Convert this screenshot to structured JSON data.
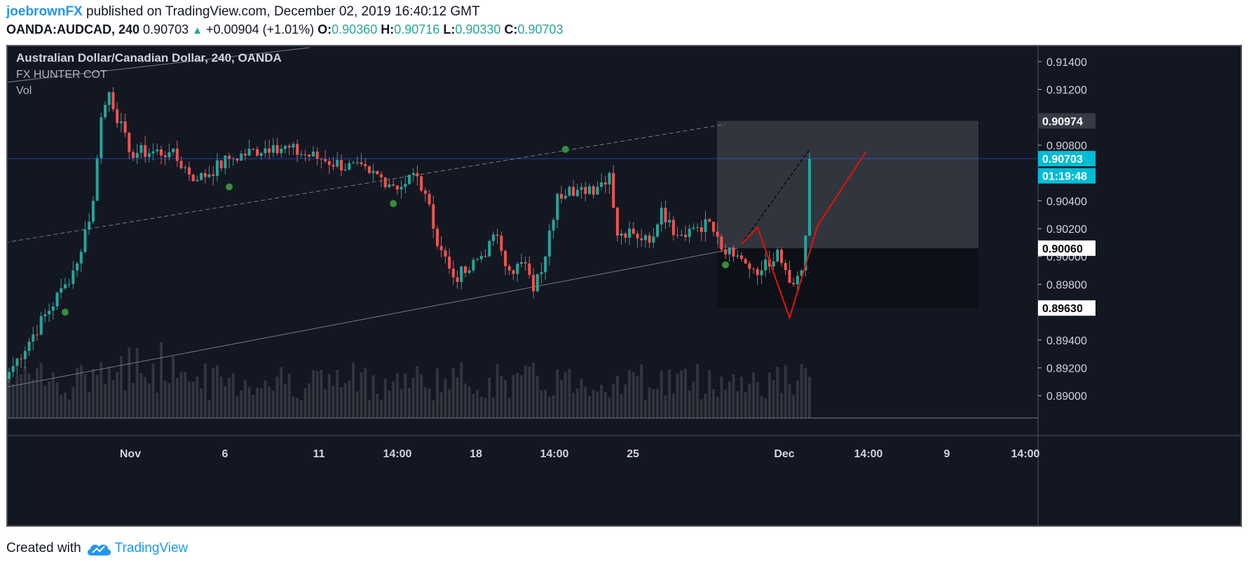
{
  "header": {
    "user": "joebrownFX",
    "published": " published on TradingView.com, December 02, 2019 16:40:12 GMT",
    "symbol": "OANDA:AUDCAD, 240",
    "last": "0.90703",
    "arrow": "▲",
    "change": "+0.00904 (+1.01%)",
    "o_label": "O:",
    "o_val": "0.90360",
    "h_label": "H:",
    "h_val": "0.90716",
    "l_label": "L:",
    "l_val": "0.90330",
    "c_label": "C:",
    "c_val": "0.90703"
  },
  "legend": {
    "title": "Australian Dollar/Canadian Dollar, 240, OANDA",
    "indicator": "FX HUNTER COT",
    "volume": "Vol"
  },
  "footer": {
    "created_with": "Created with",
    "brand": "TradingView"
  },
  "colors": {
    "background": "#131722",
    "up": "#26a69a",
    "down": "#ef5350",
    "zigzag": "#e3130c",
    "dot": "#388e3c",
    "price_line": "#2962ff",
    "price_badge": "#00bcd4"
  },
  "chart_data": {
    "type": "candlestick",
    "title": "Australian Dollar/Canadian Dollar, 240, OANDA",
    "timeframe": "240",
    "y_axis": {
      "ticks": [
        "0.91400",
        "0.91200",
        "0.90800",
        "0.90400",
        "0.90200",
        "0.90000",
        "0.89800",
        "0.89400",
        "0.89200",
        "0.89000"
      ],
      "tick_values": [
        0.914,
        0.912,
        0.908,
        0.904,
        0.902,
        0.9,
        0.898,
        0.894,
        0.892,
        0.89
      ],
      "range": [
        0.8884,
        0.9151
      ]
    },
    "x_axis": {
      "ticks": [
        "Nov",
        "6",
        "11",
        "14:00",
        "18",
        "14:00",
        "25",
        "Dec",
        "14:00",
        "9",
        "14:00"
      ]
    },
    "price_labels": [
      {
        "label": "0.90974",
        "value": 0.90974,
        "style": "dark"
      },
      {
        "label": "0.90703",
        "value": 0.90703,
        "style": "last"
      },
      {
        "label": "01:19:48",
        "value": 0.9064,
        "style": "countdown"
      },
      {
        "label": "0.90060",
        "value": 0.9006,
        "style": "white"
      },
      {
        "label": "0.89630",
        "value": 0.8963,
        "style": "white"
      }
    ],
    "last_price": 0.90703,
    "candle_count": 201,
    "key_levels": [
      {
        "bar": 0,
        "price": 0.8917
      },
      {
        "bar": 14,
        "price": 0.898
      },
      {
        "bar": 17,
        "price": 0.8995
      },
      {
        "bar": 21,
        "price": 0.904
      },
      {
        "bar": 23,
        "price": 0.91
      },
      {
        "bar": 25,
        "price": 0.9118
      },
      {
        "bar": 30,
        "price": 0.9075
      },
      {
        "bar": 40,
        "price": 0.9075
      },
      {
        "bar": 47,
        "price": 0.9055
      },
      {
        "bar": 55,
        "price": 0.907
      },
      {
        "bar": 66,
        "price": 0.908
      },
      {
        "bar": 78,
        "price": 0.907
      },
      {
        "bar": 90,
        "price": 0.906
      },
      {
        "bar": 98,
        "price": 0.905
      },
      {
        "bar": 101,
        "price": 0.906
      },
      {
        "bar": 104,
        "price": 0.9045
      },
      {
        "bar": 106,
        "price": 0.902
      },
      {
        "bar": 111,
        "price": 0.8985
      },
      {
        "bar": 115,
        "price": 0.899
      },
      {
        "bar": 122,
        "price": 0.9015
      },
      {
        "bar": 125,
        "price": 0.899
      },
      {
        "bar": 129,
        "price": 0.8995
      },
      {
        "bar": 131,
        "price": 0.8975
      },
      {
        "bar": 134,
        "price": 0.9
      },
      {
        "bar": 137,
        "price": 0.9045
      },
      {
        "bar": 140,
        "price": 0.905
      },
      {
        "bar": 144,
        "price": 0.9045
      },
      {
        "bar": 147,
        "price": 0.905
      },
      {
        "bar": 150,
        "price": 0.906
      },
      {
        "bar": 152,
        "price": 0.9015
      },
      {
        "bar": 155,
        "price": 0.902
      },
      {
        "bar": 160,
        "price": 0.901
      },
      {
        "bar": 163,
        "price": 0.9035
      },
      {
        "bar": 167,
        "price": 0.9015
      },
      {
        "bar": 170,
        "price": 0.902
      },
      {
        "bar": 175,
        "price": 0.9025
      },
      {
        "bar": 178,
        "price": 0.9005
      },
      {
        "bar": 181,
        "price": 0.9
      },
      {
        "bar": 184,
        "price": 0.8995
      },
      {
        "bar": 188,
        "price": 0.899
      },
      {
        "bar": 192,
        "price": 0.9005
      },
      {
        "bar": 196,
        "price": 0.898
      },
      {
        "bar": 198,
        "price": 0.899
      },
      {
        "bar": 199,
        "price": 0.9015
      },
      {
        "bar": 200,
        "price": 0.9036
      },
      {
        "bar": 201,
        "price": 0.90703
      }
    ],
    "signal_dots": [
      {
        "bar": 14,
        "price": 0.896
      },
      {
        "bar": 55,
        "price": 0.905
      },
      {
        "bar": 96,
        "price": 0.9038
      },
      {
        "bar": 139,
        "price": 0.9077
      },
      {
        "bar": 179,
        "price": 0.8994
      }
    ],
    "rectangle_zones": [
      {
        "top": 0.90974,
        "bottom": 0.9006,
        "style": "light"
      },
      {
        "top": 0.9006,
        "bottom": 0.8963,
        "style": "dark"
      }
    ],
    "zigzag_projection": [
      {
        "bar": 183,
        "price": 0.9009
      },
      {
        "bar": 187,
        "price": 0.9021
      },
      {
        "bar": 195,
        "price": 0.8956
      },
      {
        "bar": 202,
        "price": 0.9022
      },
      {
        "bar": 214,
        "price": 0.9075
      }
    ],
    "channel": {
      "lower": [
        {
          "bar": -1,
          "price": 0.8906
        },
        {
          "bar": 182,
          "price": 0.9006
        }
      ],
      "middle": [
        {
          "bar": -1,
          "price": 0.901
        },
        {
          "bar": 179,
          "price": 0.9095
        }
      ],
      "upper": [
        {
          "bar": -1,
          "price": 0.9125
        },
        {
          "bar": 75,
          "price": 0.915
        }
      ]
    }
  }
}
